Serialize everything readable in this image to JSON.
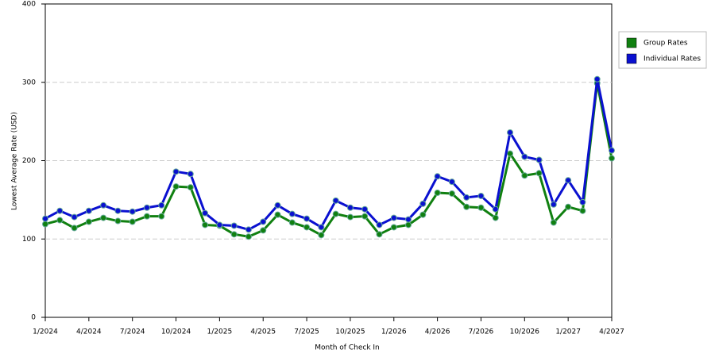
{
  "chart_data": {
    "type": "line",
    "x_label": "Month of Check In",
    "y_label": "Lowest Average Rate (USD)",
    "categories": [
      "1/2024",
      null,
      null,
      "4/2024",
      null,
      null,
      "7/2024",
      null,
      null,
      "10/2024",
      null,
      null,
      "1/2025",
      null,
      null,
      "4/2025",
      null,
      null,
      "7/2025",
      null,
      null,
      "10/2025",
      null,
      null,
      "1/2026",
      null,
      null,
      "4/2026",
      null,
      null,
      "7/2026",
      null,
      null,
      "10/2026",
      null,
      null,
      "1/2027",
      null,
      null,
      "4/2027"
    ],
    "series": [
      {
        "name": "Group Rates",
        "color": "#108010",
        "values": [
          119,
          124,
          114,
          122,
          127,
          123,
          122,
          129,
          129,
          167,
          166,
          118,
          117,
          106,
          103,
          111,
          131,
          121,
          115,
          105,
          132,
          128,
          129,
          106,
          115,
          118,
          131,
          159,
          158,
          141,
          140,
          127,
          209,
          181,
          184,
          121,
          141,
          136,
          299,
          203
        ]
      },
      {
        "name": "Individual Rates",
        "color": "#0a10d0",
        "values": [
          126,
          136,
          128,
          136,
          143,
          136,
          135,
          140,
          143,
          186,
          183,
          133,
          118,
          117,
          112,
          122,
          143,
          132,
          126,
          115,
          149,
          140,
          138,
          118,
          127,
          125,
          145,
          180,
          173,
          153,
          155,
          138,
          236,
          205,
          201,
          144,
          175,
          147,
          304,
          213
        ]
      }
    ],
    "ylim": [
      0,
      400
    ],
    "yticks": [
      0,
      100,
      200,
      300,
      400
    ],
    "grid": true
  }
}
